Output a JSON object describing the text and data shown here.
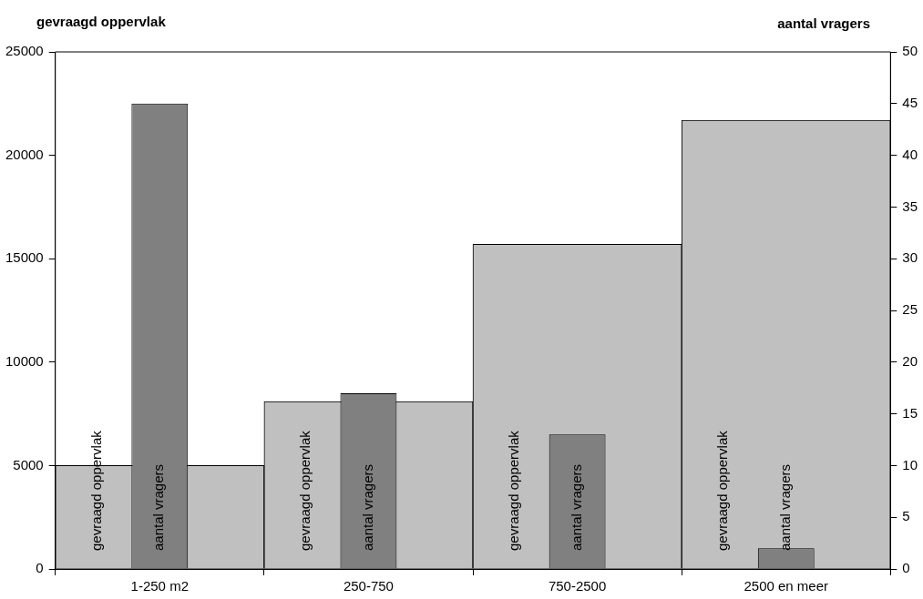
{
  "chart_data": {
    "type": "bar",
    "ylabel": "gevraagd oppervlak",
    "y2label": "aantal vragers",
    "categories": [
      "1-250 m2",
      "250-750",
      "750-2500",
      "2500 en meer"
    ],
    "series": [
      {
        "name": "gevraagd oppervlak",
        "color": "#c0c0c0",
        "values": [
          5000,
          8100,
          15700,
          21700
        ]
      },
      {
        "name": "aantal vragers",
        "color": "#808080",
        "axis": "y2",
        "values": [
          45,
          17,
          13,
          2
        ]
      }
    ],
    "ylim": [
      0,
      25000
    ],
    "yticks": [
      0,
      5000,
      10000,
      15000,
      20000,
      25000
    ],
    "y2lim": [
      0,
      50
    ],
    "y2ticks": [
      0,
      5,
      10,
      15,
      20,
      25,
      30,
      35,
      40,
      45,
      50
    ],
    "grid": false,
    "legend": false
  }
}
